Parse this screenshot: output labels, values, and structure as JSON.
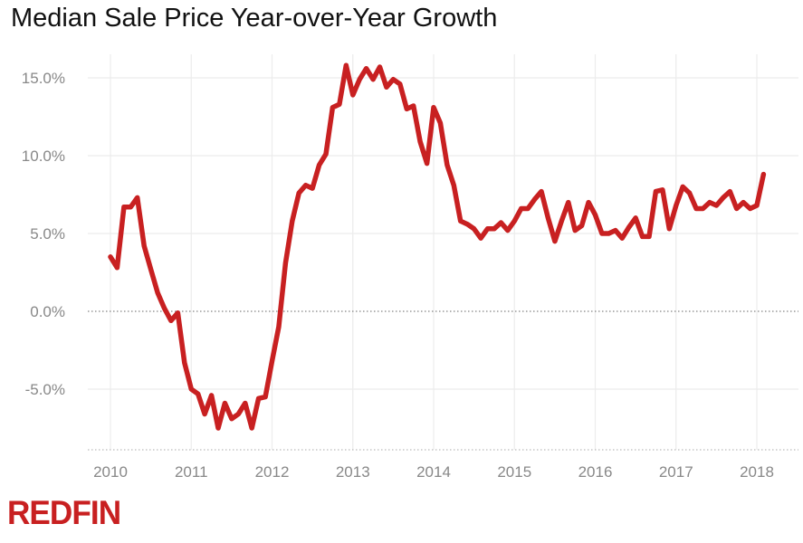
{
  "chart_data": {
    "type": "line",
    "title": "Median Sale Price Year-over-Year Growth",
    "xlabel": "",
    "ylabel": "",
    "x_ticks": [
      "2010",
      "2011",
      "2012",
      "2013",
      "2014",
      "2015",
      "2016",
      "2017",
      "2018"
    ],
    "y_ticks": [
      "15.0%",
      "10.0%",
      "5.0%",
      "0.0%",
      "-5.0%"
    ],
    "y_tick_values": [
      15,
      10,
      5,
      0,
      -5
    ],
    "xlim": [
      2009.7,
      2018.55
    ],
    "ylim": [
      -8.5,
      16.5
    ],
    "grid": true,
    "start_month": "2010-01",
    "series": [
      {
        "name": "Median Sale Price YoY Growth (%)",
        "color": "#c82021",
        "values": [
          3.5,
          2.8,
          6.7,
          6.7,
          7.3,
          4.2,
          2.7,
          1.2,
          0.2,
          -0.6,
          -0.1,
          -3.3,
          -5.0,
          -5.3,
          -6.6,
          -5.4,
          -7.5,
          -5.9,
          -6.9,
          -6.6,
          -5.9,
          -7.5,
          -5.6,
          -5.5,
          -3.2,
          -1.0,
          3.1,
          5.8,
          7.6,
          8.1,
          7.9,
          9.4,
          10.1,
          13.1,
          13.3,
          15.8,
          13.9,
          14.9,
          15.6,
          14.9,
          15.7,
          14.4,
          14.9,
          14.6,
          13.0,
          13.2,
          10.9,
          9.5,
          13.1,
          12.1,
          9.4,
          8.1,
          5.8,
          5.6,
          5.3,
          4.7,
          5.3,
          5.3,
          5.7,
          5.2,
          5.8,
          6.6,
          6.6,
          7.2,
          7.7,
          6.0,
          4.5,
          5.8,
          7.0,
          5.2,
          5.5,
          7.0,
          6.2,
          5.0,
          5.0,
          5.2,
          4.7,
          5.4,
          6.0,
          4.8,
          4.8,
          7.7,
          7.8,
          5.3,
          6.8,
          8.0,
          7.6,
          6.6,
          6.6,
          7.0,
          6.8,
          7.3,
          7.7,
          6.6,
          7.0,
          6.6,
          6.8,
          8.8
        ]
      }
    ]
  },
  "branding": {
    "logo": "REDFIN"
  }
}
